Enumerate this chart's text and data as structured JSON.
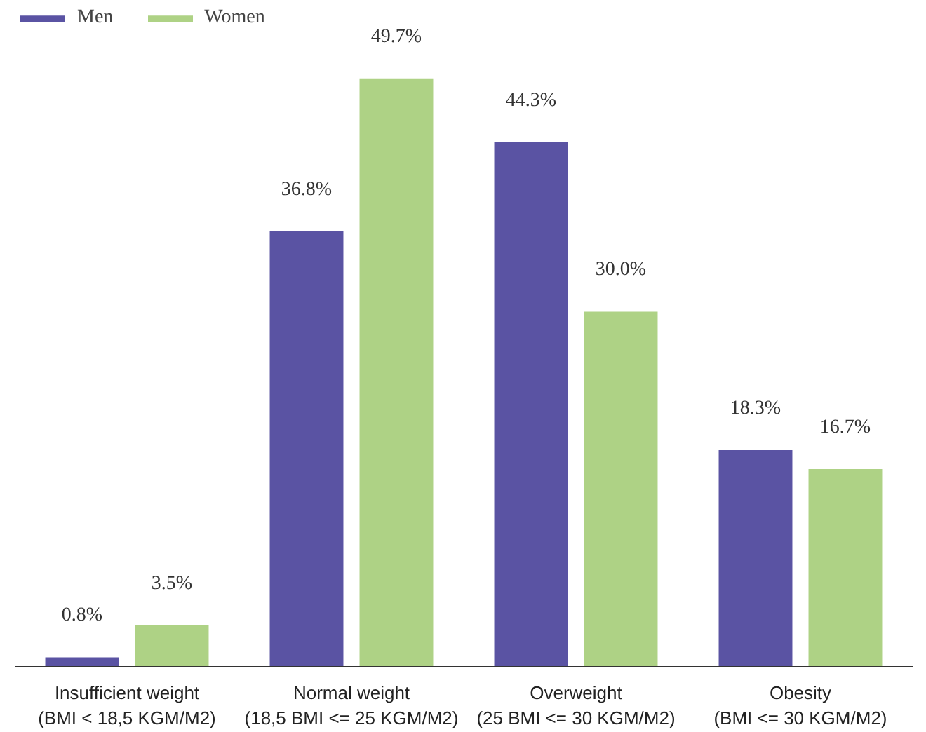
{
  "chart_data": {
    "type": "bar",
    "categories": [
      "Insufficient weight\n(BMI < 18,5 KGM/M2)",
      "Normal weight\n(18,5 BMI <= 25 KGM/M2)",
      "Overweight\n(25 BMI <= 30 KGM/M2)",
      "Obesity\n(BMI <= 30 KGM/M2)"
    ],
    "series": [
      {
        "name": "Men",
        "color": "#5a53a3",
        "values": [
          0.8,
          36.8,
          44.3,
          18.3
        ],
        "value_labels": [
          "0.8%",
          "36.8%",
          "44.3%",
          "18.3%"
        ]
      },
      {
        "name": "Women",
        "color": "#aed285",
        "values": [
          3.5,
          49.7,
          30.0,
          16.7
        ],
        "value_labels": [
          "3.5%",
          "49.7%",
          "30.0%",
          "16.7%"
        ]
      }
    ],
    "legend": "top left"
  }
}
